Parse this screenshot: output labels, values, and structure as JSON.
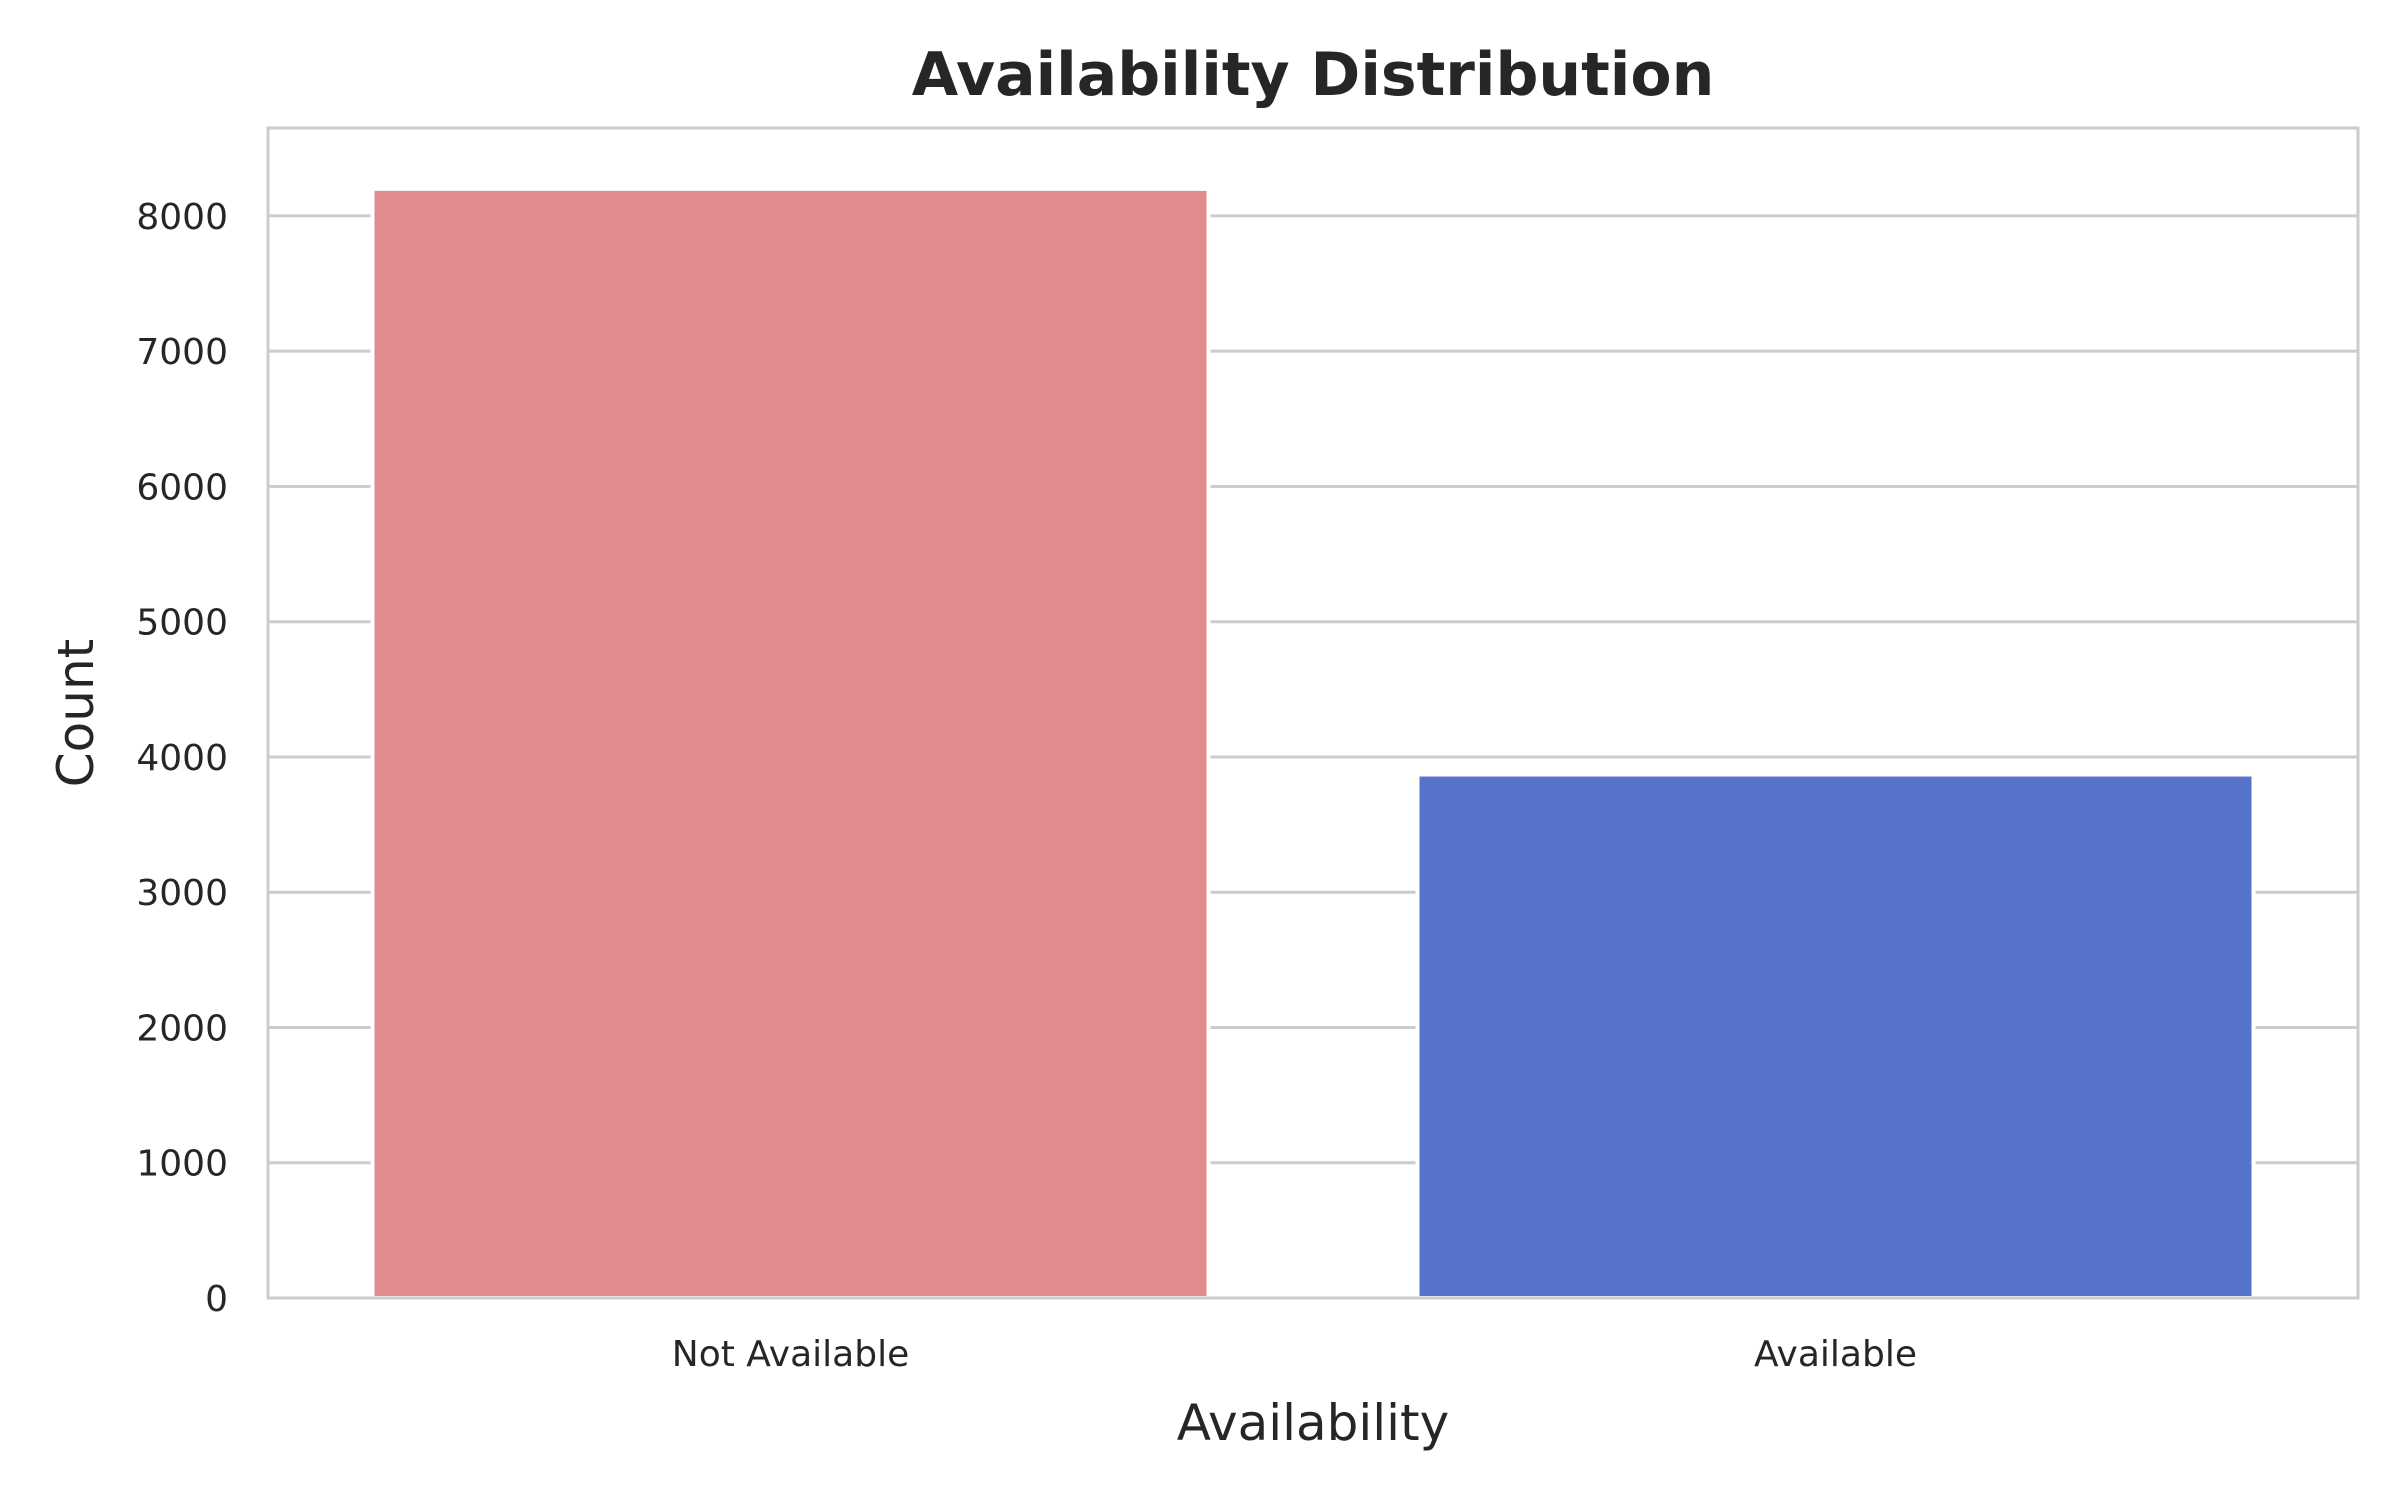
{
  "chart_data": {
    "type": "bar",
    "title": "Availability Distribution",
    "xlabel": "Availability",
    "ylabel": "Count",
    "categories": [
      "Not Available",
      "Available"
    ],
    "values": [
      8200,
      3870
    ],
    "colors": [
      "#e18b8e",
      "#5674cc"
    ],
    "ylim": [
      0,
      8650
    ],
    "yticks": [
      0,
      1000,
      2000,
      3000,
      4000,
      5000,
      6000,
      7000,
      8000
    ],
    "ytick_labels": [
      "0",
      "1000",
      "2000",
      "3000",
      "4000",
      "5000",
      "6000",
      "7000",
      "8000"
    ],
    "grid": true,
    "grid_axis": "y",
    "legend": "none"
  },
  "style": {
    "background": "#ffffff",
    "grid_color": "#cccccc",
    "frame_color": "#cccccc",
    "text_color": "#262626"
  }
}
